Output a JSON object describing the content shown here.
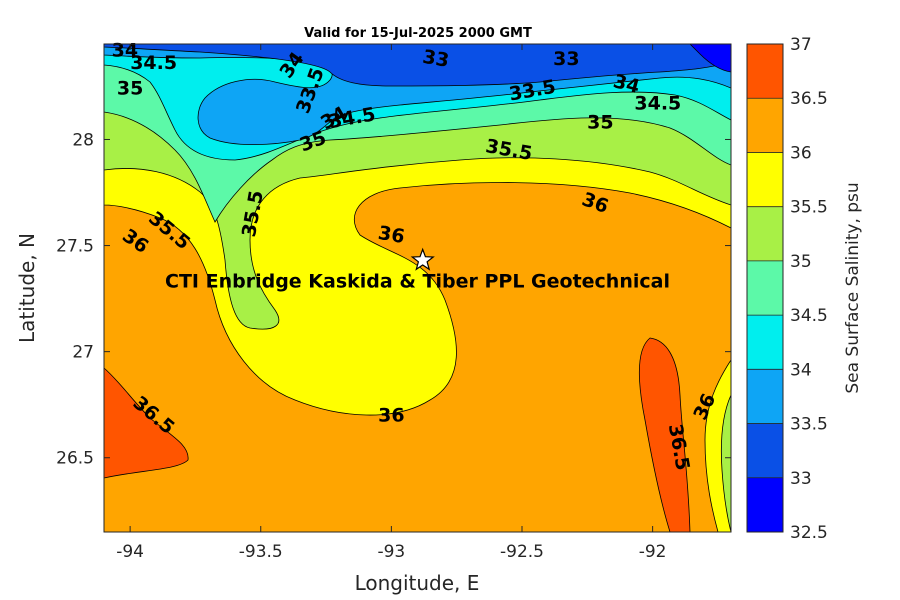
{
  "chart_data": {
    "type": "contour",
    "title": "Valid for 15-Jul-2025 2000 GMT",
    "xlabel": "Longitude, E",
    "ylabel": "Latitude, N",
    "xlim": [
      -94.1,
      -91.7
    ],
    "ylim": [
      26.15,
      28.45
    ],
    "x_ticks": [
      -94,
      -93.5,
      -93,
      -92.5,
      -92
    ],
    "y_ticks": [
      26.5,
      27,
      27.5,
      28
    ],
    "x_tick_labels": [
      "-94",
      "-93.5",
      "-93",
      "-92.5",
      "-92"
    ],
    "y_tick_labels": [
      "26.5",
      "27",
      "27.5",
      "28"
    ],
    "colorbar": {
      "label": "Sea Surface Salinity, psu",
      "range": [
        32.5,
        37
      ],
      "levels": [
        32.5,
        33,
        33.5,
        34,
        34.5,
        35,
        35.5,
        36,
        36.5,
        37
      ],
      "tick_labels": [
        "32.5",
        "33",
        "33.5",
        "34",
        "34.5",
        "35",
        "35.5",
        "36",
        "36.5",
        "37"
      ],
      "colors": [
        "#0000ff",
        "#0a50e6",
        "#0ea5f5",
        "#00eeee",
        "#5cf9a8",
        "#a8f046",
        "#ffff00",
        "#ffa500",
        "#ff5500"
      ]
    },
    "contour_labels": [
      {
        "text": "34",
        "x": -94.02,
        "y": 28.42,
        "angle": 0
      },
      {
        "text": "34.5",
        "x": -93.91,
        "y": 28.36,
        "angle": 0
      },
      {
        "text": "35",
        "x": -94.0,
        "y": 28.24,
        "angle": 0
      },
      {
        "text": "34",
        "x": -93.38,
        "y": 28.35,
        "angle": -55
      },
      {
        "text": "33.5",
        "x": -93.31,
        "y": 28.23,
        "angle": -70
      },
      {
        "text": "34",
        "x": -93.22,
        "y": 28.1,
        "angle": -30
      },
      {
        "text": "34.5",
        "x": -93.15,
        "y": 28.1,
        "angle": -10
      },
      {
        "text": "35",
        "x": -93.3,
        "y": 27.99,
        "angle": -20
      },
      {
        "text": "33",
        "x": -92.83,
        "y": 28.38,
        "angle": 10
      },
      {
        "text": "33",
        "x": -92.33,
        "y": 28.38,
        "angle": 0
      },
      {
        "text": "33.5",
        "x": -92.46,
        "y": 28.23,
        "angle": -10
      },
      {
        "text": "34",
        "x": -92.1,
        "y": 28.26,
        "angle": 15
      },
      {
        "text": "34.5",
        "x": -91.98,
        "y": 28.17,
        "angle": 0
      },
      {
        "text": "35",
        "x": -92.2,
        "y": 28.08,
        "angle": 0
      },
      {
        "text": "35.5",
        "x": -92.55,
        "y": 27.95,
        "angle": 10
      },
      {
        "text": "36",
        "x": -92.22,
        "y": 27.7,
        "angle": 20
      },
      {
        "text": "35.5",
        "x": -93.85,
        "y": 27.57,
        "angle": 40
      },
      {
        "text": "36",
        "x": -93.98,
        "y": 27.52,
        "angle": 35
      },
      {
        "text": "35.5",
        "x": -93.53,
        "y": 27.65,
        "angle": -80
      },
      {
        "text": "36",
        "x": -93.0,
        "y": 27.55,
        "angle": 10
      },
      {
        "text": "36",
        "x": -93.0,
        "y": 26.7,
        "angle": 0
      },
      {
        "text": "36.5",
        "x": -93.91,
        "y": 26.7,
        "angle": 40
      },
      {
        "text": "36.5",
        "x": -91.9,
        "y": 26.55,
        "angle": 80
      },
      {
        "text": "36",
        "x": -91.8,
        "y": 26.74,
        "angle": -65
      }
    ],
    "annotations": [
      {
        "text": "CTI Enbridge  Kaskida & Tiber PPL Geotechnical",
        "x": -92.9,
        "y": 27.33
      }
    ],
    "markers": [
      {
        "type": "star",
        "x": -92.88,
        "y": 27.43
      }
    ]
  }
}
